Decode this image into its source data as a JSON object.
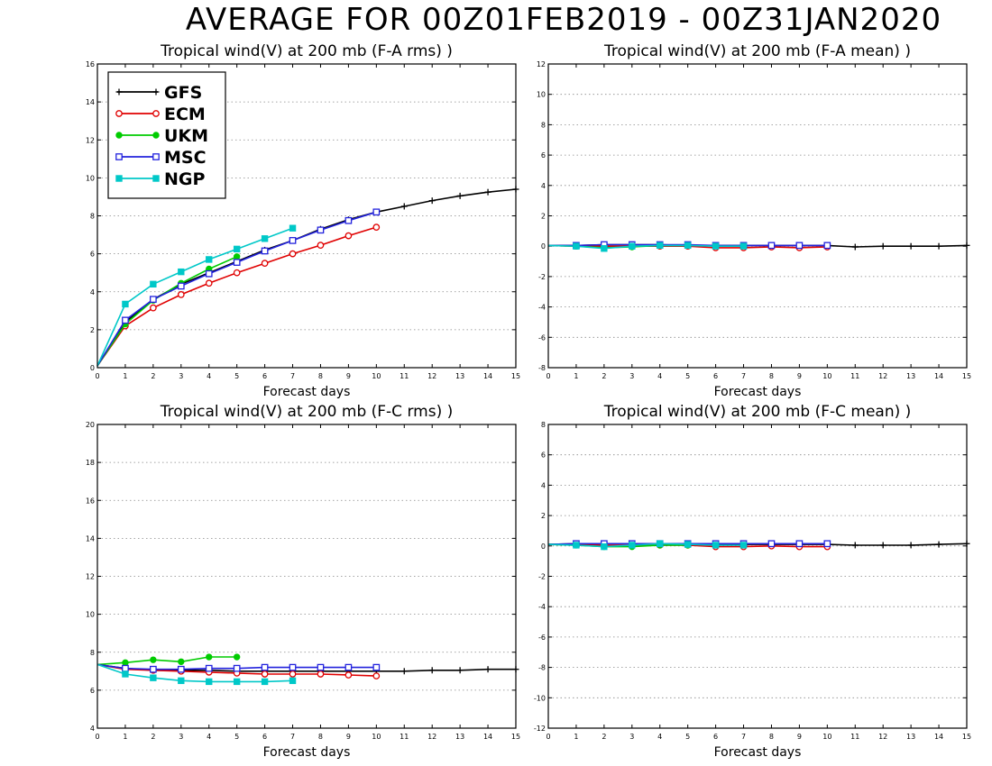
{
  "title": "AVERAGE FOR 00Z01FEB2019 - 00Z31JAN2020",
  "colors": {
    "GFS": "#000000",
    "ECM": "#e00000",
    "UKM": "#00cc00",
    "MSC": "#2222dd",
    "NGP": "#00c8c8"
  },
  "legend": {
    "placement": "top-left of first panel",
    "entries": [
      {
        "name": "GFS",
        "marker": "plus"
      },
      {
        "name": "ECM",
        "marker": "open-circle"
      },
      {
        "name": "UKM",
        "marker": "filled-circle"
      },
      {
        "name": "MSC",
        "marker": "open-square"
      },
      {
        "name": "NGP",
        "marker": "filled-square"
      }
    ]
  },
  "chart_data": [
    {
      "type": "line",
      "title": "Tropical wind(V) at 200 mb (F-A rms) )",
      "xlabel": "Forecast days",
      "ylabel": "",
      "xlim": [
        0,
        15
      ],
      "ylim": [
        0,
        16
      ],
      "xticks": [
        "0",
        "1",
        "2",
        "3",
        "4",
        "5",
        "6",
        "7",
        "8",
        "9",
        "10",
        "11",
        "12",
        "13",
        "14",
        "15"
      ],
      "yticks": [
        "0",
        "2",
        "4",
        "6",
        "8",
        "10",
        "12",
        "14",
        "16"
      ],
      "grid": "dotted horizontal",
      "series": [
        {
          "name": "GFS",
          "x": [
            0,
            1,
            2,
            3,
            4,
            5,
            6,
            7,
            8,
            9,
            10,
            11,
            12,
            13,
            14,
            15
          ],
          "values": [
            0.1,
            2.4,
            3.6,
            4.4,
            5.0,
            5.6,
            6.2,
            6.7,
            7.3,
            7.8,
            8.2,
            8.5,
            8.8,
            9.05,
            9.25,
            9.4
          ]
        },
        {
          "name": "ECM",
          "x": [
            0,
            1,
            2,
            3,
            4,
            5,
            6,
            7,
            8,
            9,
            10
          ],
          "values": [
            0.1,
            2.2,
            3.15,
            3.85,
            4.45,
            5.0,
            5.5,
            6.0,
            6.45,
            6.95,
            7.4
          ]
        },
        {
          "name": "UKM",
          "x": [
            0,
            1,
            2,
            3,
            4,
            5
          ],
          "values": [
            0.1,
            2.3,
            3.55,
            4.45,
            5.2,
            5.85
          ]
        },
        {
          "name": "MSC",
          "x": [
            0,
            1,
            2,
            3,
            4,
            5,
            6,
            7,
            8,
            9,
            10
          ],
          "values": [
            0.1,
            2.5,
            3.6,
            4.3,
            4.95,
            5.55,
            6.15,
            6.7,
            7.25,
            7.75,
            8.2
          ]
        },
        {
          "name": "NGP",
          "x": [
            0,
            1,
            2,
            3,
            4,
            5,
            6,
            7
          ],
          "values": [
            0.1,
            3.35,
            4.4,
            5.05,
            5.7,
            6.25,
            6.8,
            7.35
          ]
        }
      ]
    },
    {
      "type": "line",
      "title": "Tropical wind(V) at 200 mb (F-A mean) )",
      "xlabel": "Forecast days",
      "ylabel": "",
      "xlim": [
        0,
        15
      ],
      "ylim": [
        -8,
        12
      ],
      "xticks": [
        "0",
        "1",
        "2",
        "3",
        "4",
        "5",
        "6",
        "7",
        "8",
        "9",
        "10",
        "11",
        "12",
        "13",
        "14",
        "15"
      ],
      "yticks": [
        "-8",
        "-6",
        "-4",
        "-2",
        "0",
        "2",
        "4",
        "6",
        "8",
        "10",
        "12"
      ],
      "grid": "dotted horizontal",
      "series": [
        {
          "name": "GFS",
          "x": [
            0,
            1,
            2,
            3,
            4,
            5,
            6,
            7,
            8,
            9,
            10,
            11,
            12,
            13,
            14,
            15
          ],
          "values": [
            0.05,
            0.05,
            0.1,
            0.1,
            0.1,
            0.05,
            0.05,
            0.05,
            0.05,
            0.05,
            0.05,
            -0.05,
            0.0,
            0.0,
            0.0,
            0.05
          ]
        },
        {
          "name": "ECM",
          "x": [
            0,
            1,
            2,
            3,
            4,
            5,
            6,
            7,
            8,
            9,
            10
          ],
          "values": [
            0.05,
            0.0,
            0.0,
            0.0,
            0.0,
            0.0,
            -0.1,
            -0.1,
            -0.05,
            -0.1,
            -0.05
          ]
        },
        {
          "name": "UKM",
          "x": [
            0,
            1,
            2,
            3,
            4,
            5
          ],
          "values": [
            0.05,
            0.0,
            -0.1,
            -0.05,
            0.05,
            0.05
          ]
        },
        {
          "name": "MSC",
          "x": [
            0,
            1,
            2,
            3,
            4,
            5,
            6,
            7,
            8,
            9,
            10
          ],
          "values": [
            0.05,
            0.05,
            0.1,
            0.1,
            0.1,
            0.1,
            0.05,
            0.05,
            0.05,
            0.05,
            0.05
          ]
        },
        {
          "name": "NGP",
          "x": [
            0,
            1,
            2,
            3,
            4,
            5,
            6,
            7
          ],
          "values": [
            0.05,
            0.0,
            -0.15,
            0.0,
            0.05,
            0.05,
            0.0,
            0.0
          ]
        }
      ]
    },
    {
      "type": "line",
      "title": "Tropical wind(V) at 200 mb (F-C rms) )",
      "xlabel": "Forecast days",
      "ylabel": "",
      "xlim": [
        0,
        15
      ],
      "ylim": [
        4,
        20
      ],
      "xticks": [
        "0",
        "1",
        "2",
        "3",
        "4",
        "5",
        "6",
        "7",
        "8",
        "9",
        "10",
        "11",
        "12",
        "13",
        "14",
        "15"
      ],
      "yticks": [
        "4",
        "6",
        "8",
        "10",
        "12",
        "14",
        "16",
        "18",
        "20"
      ],
      "grid": "dotted horizontal",
      "series": [
        {
          "name": "GFS",
          "x": [
            0,
            1,
            2,
            3,
            4,
            5,
            6,
            7,
            8,
            9,
            10,
            11,
            12,
            13,
            14,
            15
          ],
          "values": [
            7.35,
            7.15,
            7.05,
            7.05,
            7.05,
            7.0,
            7.0,
            7.0,
            7.0,
            7.0,
            7.0,
            7.0,
            7.05,
            7.05,
            7.1,
            7.1
          ]
        },
        {
          "name": "ECM",
          "x": [
            0,
            1,
            2,
            3,
            4,
            5,
            6,
            7,
            8,
            9,
            10
          ],
          "values": [
            7.35,
            7.1,
            7.05,
            7.0,
            6.95,
            6.9,
            6.85,
            6.85,
            6.85,
            6.8,
            6.75
          ]
        },
        {
          "name": "UKM",
          "x": [
            0,
            1,
            2,
            3,
            4,
            5
          ],
          "values": [
            7.35,
            7.45,
            7.6,
            7.5,
            7.75,
            7.75
          ]
        },
        {
          "name": "MSC",
          "x": [
            0,
            1,
            2,
            3,
            4,
            5,
            6,
            7,
            8,
            9,
            10
          ],
          "values": [
            7.35,
            7.15,
            7.1,
            7.1,
            7.15,
            7.15,
            7.2,
            7.2,
            7.2,
            7.2,
            7.2
          ]
        },
        {
          "name": "NGP",
          "x": [
            0,
            1,
            2,
            3,
            4,
            5,
            6,
            7
          ],
          "values": [
            7.35,
            6.85,
            6.65,
            6.5,
            6.45,
            6.45,
            6.45,
            6.5
          ]
        }
      ]
    },
    {
      "type": "line",
      "title": "Tropical wind(V) at 200 mb (F-C mean) )",
      "xlabel": "Forecast days",
      "ylabel": "",
      "xlim": [
        0,
        15
      ],
      "ylim": [
        -12,
        8
      ],
      "xticks": [
        "0",
        "1",
        "2",
        "3",
        "4",
        "5",
        "6",
        "7",
        "8",
        "9",
        "10",
        "11",
        "12",
        "13",
        "14",
        "15"
      ],
      "yticks": [
        "-12",
        "-10",
        "-8",
        "-6",
        "-4",
        "-2",
        "0",
        "2",
        "4",
        "6",
        "8"
      ],
      "grid": "dotted horizontal",
      "series": [
        {
          "name": "GFS",
          "x": [
            0,
            1,
            2,
            3,
            4,
            5,
            6,
            7,
            8,
            9,
            10,
            11,
            12,
            13,
            14,
            15
          ],
          "values": [
            0.1,
            0.15,
            0.15,
            0.15,
            0.15,
            0.1,
            0.1,
            0.1,
            0.1,
            0.1,
            0.1,
            0.05,
            0.05,
            0.05,
            0.1,
            0.15
          ]
        },
        {
          "name": "ECM",
          "x": [
            0,
            1,
            2,
            3,
            4,
            5,
            6,
            7,
            8,
            9,
            10
          ],
          "values": [
            0.1,
            0.1,
            0.05,
            0.05,
            0.05,
            0.05,
            -0.05,
            -0.05,
            0.0,
            -0.05,
            -0.05
          ]
        },
        {
          "name": "UKM",
          "x": [
            0,
            1,
            2,
            3,
            4,
            5
          ],
          "values": [
            0.1,
            0.05,
            -0.05,
            -0.05,
            0.05,
            0.05
          ]
        },
        {
          "name": "MSC",
          "x": [
            0,
            1,
            2,
            3,
            4,
            5,
            6,
            7,
            8,
            9,
            10
          ],
          "values": [
            0.1,
            0.15,
            0.15,
            0.15,
            0.15,
            0.15,
            0.15,
            0.15,
            0.15,
            0.15,
            0.15
          ]
        },
        {
          "name": "NGP",
          "x": [
            0,
            1,
            2,
            3,
            4,
            5,
            6,
            7
          ],
          "values": [
            0.1,
            0.05,
            -0.05,
            0.05,
            0.15,
            0.1,
            0.05,
            0.05
          ]
        }
      ]
    }
  ]
}
